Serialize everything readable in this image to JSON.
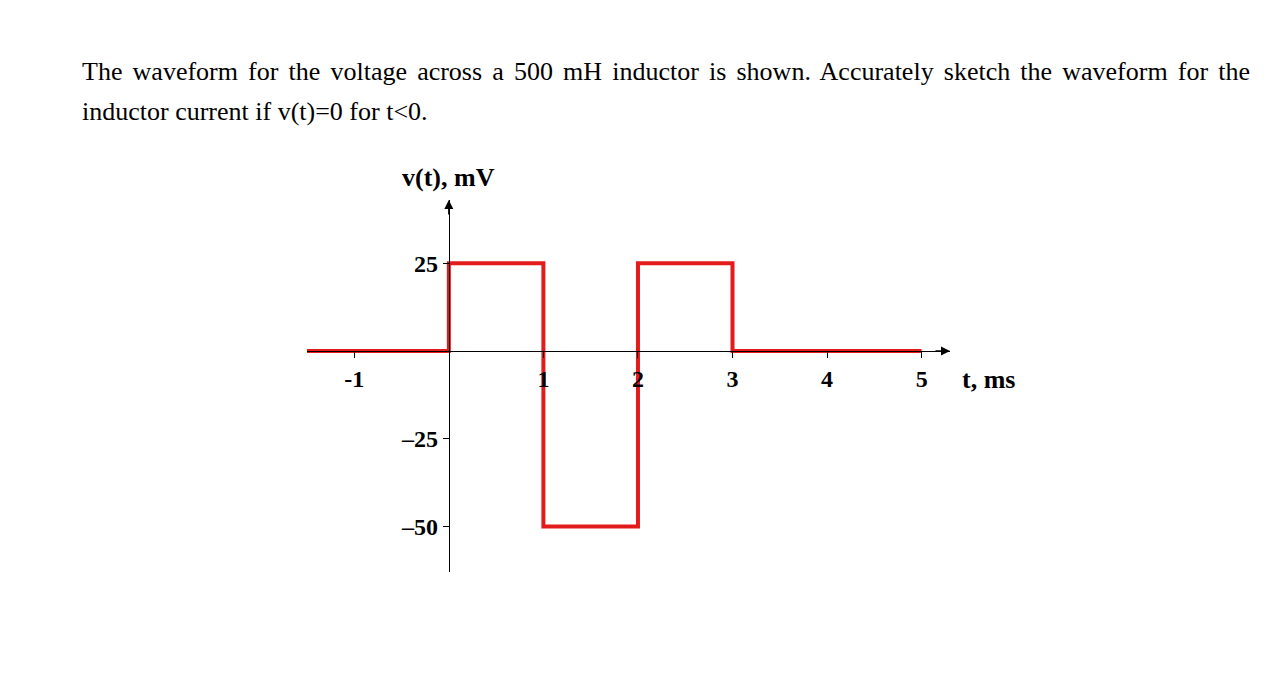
{
  "chart_data": {
    "type": "line",
    "title": "The waveform for the voltage across a 500 mH inductor is shown. Accurately sketch the waveform for the inductor current if v(t)=0 for t<0.",
    "xlabel": "t, ms",
    "ylabel": "v(t), mV",
    "x": [
      -1.5,
      0,
      0,
      1,
      1,
      2,
      2,
      3,
      3,
      5
    ],
    "values": [
      0,
      0,
      25,
      25,
      -50,
      -50,
      25,
      25,
      0,
      0
    ],
    "color": "#e31b1b",
    "xlim": [
      -1.5,
      5.3
    ],
    "ylim": [
      -63,
      43
    ],
    "xticks": [
      -1,
      1,
      2,
      3,
      4,
      5
    ],
    "yticks": [
      25,
      {
        "value": -25,
        "label": "–25"
      },
      {
        "value": -50,
        "label": "–50"
      }
    ],
    "grid": false
  }
}
